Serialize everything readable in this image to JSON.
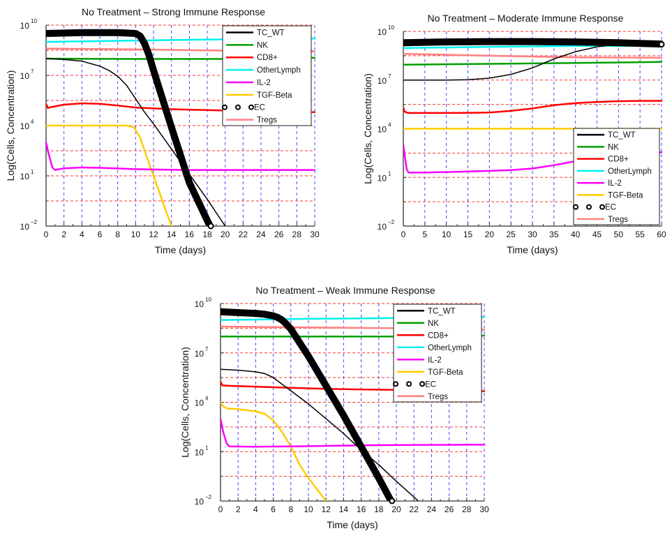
{
  "chart_data": [
    {
      "type": "line",
      "title": "No Treatment – Strong Immune Response",
      "xlabel": "Time (days)",
      "ylabel": "Log(Cells, Concentration)",
      "xlim": [
        0,
        30
      ],
      "ylim_log10": [
        -2,
        10
      ],
      "yscale": "log",
      "x_ticks": [
        0,
        2,
        4,
        6,
        8,
        10,
        12,
        14,
        16,
        18,
        20,
        22,
        24,
        26,
        28,
        30
      ],
      "x_tick_labels": [
        "0",
        "2",
        "4",
        "6",
        "8",
        "10",
        "12",
        "14",
        "16",
        "18",
        "20",
        "22",
        "24",
        "26",
        "28",
        "30"
      ],
      "y_ticks": [
        {
          "base": "10",
          "exp": "10",
          "log": 10
        },
        {
          "base": "10",
          "exp": "7",
          "log": 7
        },
        {
          "base": "10",
          "exp": "4",
          "log": 4
        },
        {
          "base": "10",
          "exp": "1",
          "log": 1
        },
        {
          "base": "10",
          "exp": "−2",
          "log": -2
        }
      ],
      "grid": {
        "x_dashed": true,
        "y_dashed_every_log10": 1.5
      },
      "legend_position": "top-right",
      "series": [
        {
          "name": "TGF-Beta",
          "color": "#ffcc00",
          "style": "line",
          "x": [
            0,
            9,
            9.8,
            10.5,
            11,
            12,
            13,
            14
          ],
          "log10_values": [
            4.0,
            4.0,
            3.9,
            3.3,
            2.5,
            1.0,
            -0.5,
            -2.0
          ]
        },
        {
          "name": "IL-2",
          "color": "#ff00ff",
          "style": "line",
          "x": [
            0,
            0.3,
            0.7,
            1,
            2,
            4,
            6,
            10,
            15,
            20,
            30
          ],
          "log10_values": [
            3.0,
            2.3,
            1.5,
            1.35,
            1.45,
            1.5,
            1.48,
            1.4,
            1.35,
            1.35,
            1.35
          ]
        },
        {
          "name": "CD8+",
          "color": "#ff0000",
          "style": "line",
          "x": [
            0,
            0.2,
            0.5,
            2,
            4,
            6,
            8,
            10,
            14,
            20,
            30
          ],
          "log10_values": [
            5.3,
            5.05,
            5.1,
            5.25,
            5.33,
            5.3,
            5.2,
            5.08,
            4.98,
            4.9,
            4.8
          ]
        },
        {
          "name": "NK",
          "color": "#00a000",
          "style": "line",
          "x": [
            0,
            10,
            20,
            30
          ],
          "log10_values": [
            8.0,
            7.98,
            7.98,
            8.05
          ]
        },
        {
          "name": "Tregs",
          "color": "#ff8080",
          "style": "line",
          "x": [
            0,
            10,
            20,
            30
          ],
          "log10_values": [
            8.6,
            8.55,
            8.48,
            8.42
          ]
        },
        {
          "name": "OtherLymph",
          "color": "#00f0f0",
          "style": "line",
          "x": [
            0,
            10,
            20,
            30
          ],
          "log10_values": [
            9.0,
            9.08,
            9.15,
            9.2
          ]
        },
        {
          "name": "EC",
          "color": "#000000",
          "style": "thin",
          "x": [
            0,
            2,
            4,
            6,
            7,
            8,
            9,
            10,
            11,
            12,
            14,
            16,
            18,
            20
          ],
          "log10_values": [
            8.0,
            7.95,
            7.85,
            7.55,
            7.3,
            6.95,
            6.4,
            5.6,
            4.8,
            4.1,
            2.6,
            1.1,
            -0.4,
            -2.0
          ]
        },
        {
          "name": "TC_WT",
          "color": "#000000",
          "style": "thick",
          "x": [
            0,
            4,
            8,
            10,
            10.5,
            11,
            11.5,
            12,
            14,
            16,
            18.3
          ],
          "log10_values": [
            9.5,
            9.55,
            9.55,
            9.5,
            9.35,
            8.9,
            8.2,
            7.3,
            3.9,
            0.6,
            -2.0
          ]
        }
      ],
      "ec_marker": {
        "x": 18.4,
        "log10_value": -2.0
      },
      "legend": [
        "TC_WT",
        "NK",
        "CD8+",
        "OtherLymph",
        "IL-2",
        "TGF-Beta",
        "EC",
        "Tregs"
      ]
    },
    {
      "type": "line",
      "title": "No Treatment – Moderate Immune Response",
      "xlabel": "Time (days)",
      "ylabel": "Log(Cells, Concentration)",
      "xlim": [
        0,
        60
      ],
      "ylim_log10": [
        -2,
        10
      ],
      "yscale": "log",
      "x_ticks": [
        0,
        5,
        10,
        15,
        20,
        25,
        30,
        35,
        40,
        45,
        50,
        55,
        60
      ],
      "x_tick_labels": [
        "0",
        "5",
        "10",
        "15",
        "20",
        "25",
        "30",
        "35",
        "40",
        "45",
        "50",
        "55",
        "60"
      ],
      "y_ticks": [
        {
          "base": "10",
          "exp": "10",
          "log": 10
        },
        {
          "base": "10",
          "exp": "7",
          "log": 7
        },
        {
          "base": "10",
          "exp": "4",
          "log": 4
        },
        {
          "base": "10",
          "exp": "1",
          "log": 1
        },
        {
          "base": "10",
          "exp": "−2",
          "log": -2
        }
      ],
      "grid": {
        "x_dashed": true,
        "y_dashed_every_log10": 1.5
      },
      "legend_position": "bottom-right",
      "series": [
        {
          "name": "TGF-Beta",
          "color": "#ffcc00",
          "style": "line",
          "x": [
            0,
            60
          ],
          "log10_values": [
            4.0,
            4.0
          ]
        },
        {
          "name": "IL-2",
          "color": "#ff00ff",
          "style": "line",
          "x": [
            0,
            0.4,
            0.8,
            1.2,
            5,
            10,
            20,
            25,
            30,
            35,
            40,
            45,
            50,
            55,
            60
          ],
          "log10_values": [
            3.0,
            2.2,
            1.5,
            1.3,
            1.3,
            1.33,
            1.4,
            1.45,
            1.55,
            1.75,
            2.0,
            2.25,
            2.45,
            2.52,
            2.55
          ]
        },
        {
          "name": "CD8+",
          "color": "#ff0000",
          "style": "line",
          "x": [
            0,
            0.3,
            1,
            5,
            10,
            15,
            20,
            25,
            30,
            35,
            40,
            45,
            50,
            55,
            60
          ],
          "log10_values": [
            5.3,
            5.05,
            4.98,
            4.97,
            4.97,
            4.98,
            5.0,
            5.1,
            5.25,
            5.45,
            5.58,
            5.65,
            5.7,
            5.72,
            5.72
          ]
        },
        {
          "name": "NK",
          "color": "#00a000",
          "style": "line",
          "x": [
            0,
            20,
            40,
            60
          ],
          "log10_values": [
            7.95,
            8.0,
            8.05,
            8.12
          ]
        },
        {
          "name": "Tregs",
          "color": "#ff8080",
          "style": "line",
          "x": [
            0,
            20,
            40,
            60
          ],
          "log10_values": [
            8.62,
            8.5,
            8.4,
            8.38
          ]
        },
        {
          "name": "OtherLymph",
          "color": "#00f0f0",
          "style": "line",
          "x": [
            0,
            20,
            40,
            60
          ],
          "log10_values": [
            8.97,
            9.05,
            9.1,
            9.12
          ]
        },
        {
          "name": "EC",
          "color": "#000000",
          "style": "thin",
          "x": [
            0,
            10,
            15,
            20,
            25,
            30,
            35,
            40,
            45,
            50,
            55,
            60
          ],
          "log10_values": [
            7.0,
            7.0,
            7.02,
            7.12,
            7.35,
            7.75,
            8.3,
            8.75,
            9.05,
            9.22,
            9.25,
            9.22
          ]
        },
        {
          "name": "TC_WT",
          "color": "#000000",
          "style": "thick",
          "x": [
            0,
            10,
            20,
            30,
            40,
            50,
            60
          ],
          "log10_values": [
            9.3,
            9.35,
            9.37,
            9.37,
            9.35,
            9.3,
            9.22
          ]
        }
      ],
      "ec_marker": {
        "x": 60,
        "log10_value": 9.2
      },
      "legend": [
        "TC_WT",
        "NK",
        "CD8+",
        "OtherLymph",
        "IL-2",
        "TGF-Beta",
        "EC",
        "Tregs"
      ]
    },
    {
      "type": "line",
      "title": "No Treatment – Weak Immune Response",
      "xlabel": "Time (days)",
      "ylabel": "Log(Cells, Concentration)",
      "xlim": [
        0,
        30
      ],
      "ylim_log10": [
        -2,
        10
      ],
      "yscale": "log",
      "x_ticks": [
        0,
        2,
        4,
        6,
        8,
        10,
        12,
        14,
        16,
        18,
        20,
        22,
        24,
        26,
        28,
        30
      ],
      "x_tick_labels": [
        "0",
        "2",
        "4",
        "6",
        "8",
        "10",
        "12",
        "14",
        "16",
        "18",
        "20",
        "22",
        "24",
        "26",
        "28",
        "30"
      ],
      "y_ticks": [
        {
          "base": "10",
          "exp": "10",
          "log": 10
        },
        {
          "base": "10",
          "exp": "7",
          "log": 7
        },
        {
          "base": "10",
          "exp": "4",
          "log": 4
        },
        {
          "base": "10",
          "exp": "1",
          "log": 1
        },
        {
          "base": "10",
          "exp": "−2",
          "log": -2
        }
      ],
      "grid": {
        "x_dashed": true,
        "y_dashed_every_log10": 1.5
      },
      "legend_position": "top-right",
      "series": [
        {
          "name": "TGF-Beta",
          "color": "#ffcc00",
          "style": "line",
          "x": [
            0,
            0.3,
            0.8,
            2,
            4,
            5,
            6,
            7,
            8,
            9,
            10,
            11,
            12
          ],
          "log10_values": [
            4.0,
            3.75,
            3.62,
            3.58,
            3.45,
            3.3,
            2.9,
            2.2,
            1.3,
            0.2,
            -0.6,
            -1.3,
            -2.0
          ]
        },
        {
          "name": "IL-2",
          "color": "#ff00ff",
          "style": "line",
          "x": [
            0,
            0.3,
            0.7,
            1,
            4,
            8,
            12,
            16,
            20,
            30
          ],
          "log10_values": [
            3.0,
            2.2,
            1.5,
            1.32,
            1.3,
            1.32,
            1.35,
            1.38,
            1.4,
            1.42
          ]
        },
        {
          "name": "CD8+",
          "color": "#ff0000",
          "style": "line",
          "x": [
            0,
            0.2,
            1,
            4,
            8,
            12,
            16,
            20,
            30
          ],
          "log10_values": [
            5.25,
            5.03,
            5.0,
            4.95,
            4.88,
            4.82,
            4.78,
            4.75,
            4.68
          ]
        },
        {
          "name": "NK",
          "color": "#00a000",
          "style": "line",
          "x": [
            0,
            10,
            20,
            30
          ],
          "log10_values": [
            8.0,
            8.0,
            8.0,
            8.05
          ]
        },
        {
          "name": "Tregs",
          "color": "#ff8080",
          "style": "line",
          "x": [
            0,
            10,
            20,
            30
          ],
          "log10_values": [
            8.6,
            8.55,
            8.5,
            8.4
          ]
        },
        {
          "name": "OtherLymph",
          "color": "#00f0f0",
          "style": "line",
          "x": [
            0,
            10,
            20,
            30
          ],
          "log10_values": [
            9.0,
            9.07,
            9.12,
            9.18
          ]
        },
        {
          "name": "EC",
          "color": "#000000",
          "style": "thin",
          "x": [
            0,
            2,
            4,
            5,
            6,
            7,
            8,
            10,
            12,
            14,
            16,
            18,
            20,
            22.5
          ],
          "log10_values": [
            6.0,
            5.95,
            5.85,
            5.75,
            5.5,
            5.1,
            4.7,
            3.9,
            3.0,
            2.1,
            1.1,
            0.2,
            -0.8,
            -2.0
          ]
        },
        {
          "name": "TC_WT",
          "color": "#000000",
          "style": "thick",
          "x": [
            0,
            2,
            4,
            5,
            6,
            6.5,
            7,
            7.5,
            8,
            10,
            12,
            14,
            16,
            18,
            19.4
          ],
          "log10_values": [
            9.5,
            9.45,
            9.4,
            9.35,
            9.25,
            9.15,
            9.0,
            8.75,
            8.45,
            6.8,
            5.0,
            3.2,
            1.3,
            -0.6,
            -2.0
          ]
        }
      ],
      "ec_marker": {
        "x": 19.5,
        "log10_value": -2.0
      },
      "legend": [
        "TC_WT",
        "NK",
        "CD8+",
        "OtherLymph",
        "IL-2",
        "TGF-Beta",
        "EC",
        "Tregs"
      ]
    }
  ]
}
